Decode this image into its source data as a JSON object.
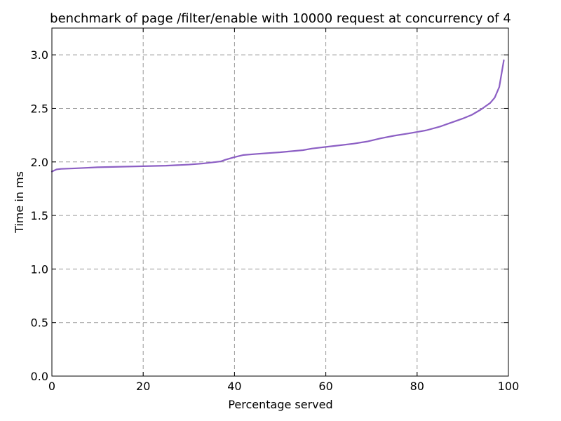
{
  "chart_data": {
    "type": "line",
    "title": "benchmark of page /filter/enable with 10000 request at concurrency of 4",
    "xlabel": "Percentage served",
    "ylabel": "Time in ms",
    "xlim": [
      0,
      100
    ],
    "ylim": [
      0,
      3.25
    ],
    "xticks": [
      0,
      20,
      40,
      60,
      80,
      100
    ],
    "xtick_labels": [
      "0",
      "20",
      "40",
      "60",
      "80",
      "100"
    ],
    "yticks": [
      0.0,
      0.5,
      1.0,
      1.5,
      2.0,
      2.5,
      3.0
    ],
    "ytick_labels": [
      "0.0",
      "0.5",
      "1.0",
      "1.5",
      "2.0",
      "2.5",
      "3.0"
    ],
    "grid": true,
    "series": [
      {
        "color": "#8c5fc4",
        "x": [
          0,
          1,
          2,
          5,
          10,
          15,
          20,
          25,
          30,
          33,
          35,
          37,
          38,
          40,
          42,
          45,
          50,
          55,
          57,
          60,
          63,
          66,
          69,
          72,
          75,
          78,
          80,
          82,
          85,
          88,
          90,
          92,
          94,
          95,
          96,
          97,
          98,
          99
        ],
        "y": [
          1.91,
          1.93,
          1.935,
          1.94,
          1.95,
          1.955,
          1.96,
          1.965,
          1.975,
          1.985,
          1.995,
          2.005,
          2.02,
          2.045,
          2.065,
          2.075,
          2.09,
          2.11,
          2.125,
          2.14,
          2.155,
          2.17,
          2.19,
          2.22,
          2.245,
          2.265,
          2.28,
          2.295,
          2.33,
          2.375,
          2.405,
          2.44,
          2.49,
          2.52,
          2.55,
          2.6,
          2.7,
          2.95
        ]
      }
    ]
  }
}
